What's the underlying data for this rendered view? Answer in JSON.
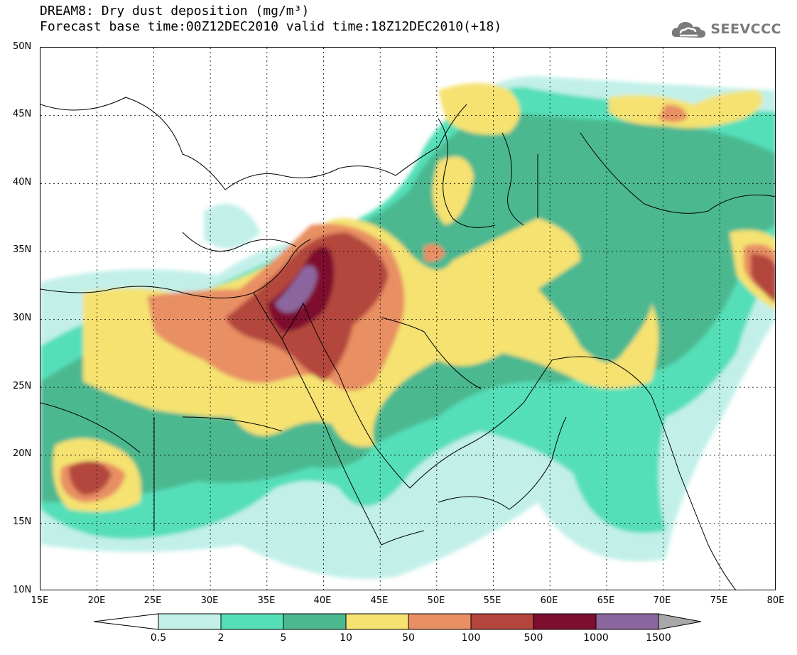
{
  "title": {
    "line1": "DREAM8: Dry dust deposition (mg/m³)",
    "line2": "Forecast base time:00Z12DEC2010 valid time:18Z12DEC2010(+18)"
  },
  "logo": {
    "text": "SEEVCCC",
    "icon": "cloud-icon",
    "color": "#7a7a7a"
  },
  "map": {
    "lat_range": [
      10,
      50
    ],
    "lon_range": [
      15,
      80
    ],
    "lat_labels": [
      "50N",
      "45N",
      "40N",
      "35N",
      "30N",
      "25N",
      "20N",
      "15N",
      "10N"
    ],
    "lon_labels": [
      "15E",
      "20E",
      "25E",
      "30E",
      "35E",
      "40E",
      "45E",
      "50E",
      "55E",
      "60E",
      "65E",
      "70E",
      "75E",
      "80E"
    ]
  },
  "colorbar": {
    "labels": [
      "0.5",
      "2",
      "5",
      "10",
      "50",
      "100",
      "500",
      "1000",
      "1500"
    ],
    "colors": [
      "#c2f0e9",
      "#55dfb8",
      "#4cb890",
      "#f5e271",
      "#e88f64",
      "#b4463d",
      "#7e0e2f",
      "#8c669e"
    ],
    "under_color": "#ffffff",
    "over_color": "#a8a8a8"
  }
}
